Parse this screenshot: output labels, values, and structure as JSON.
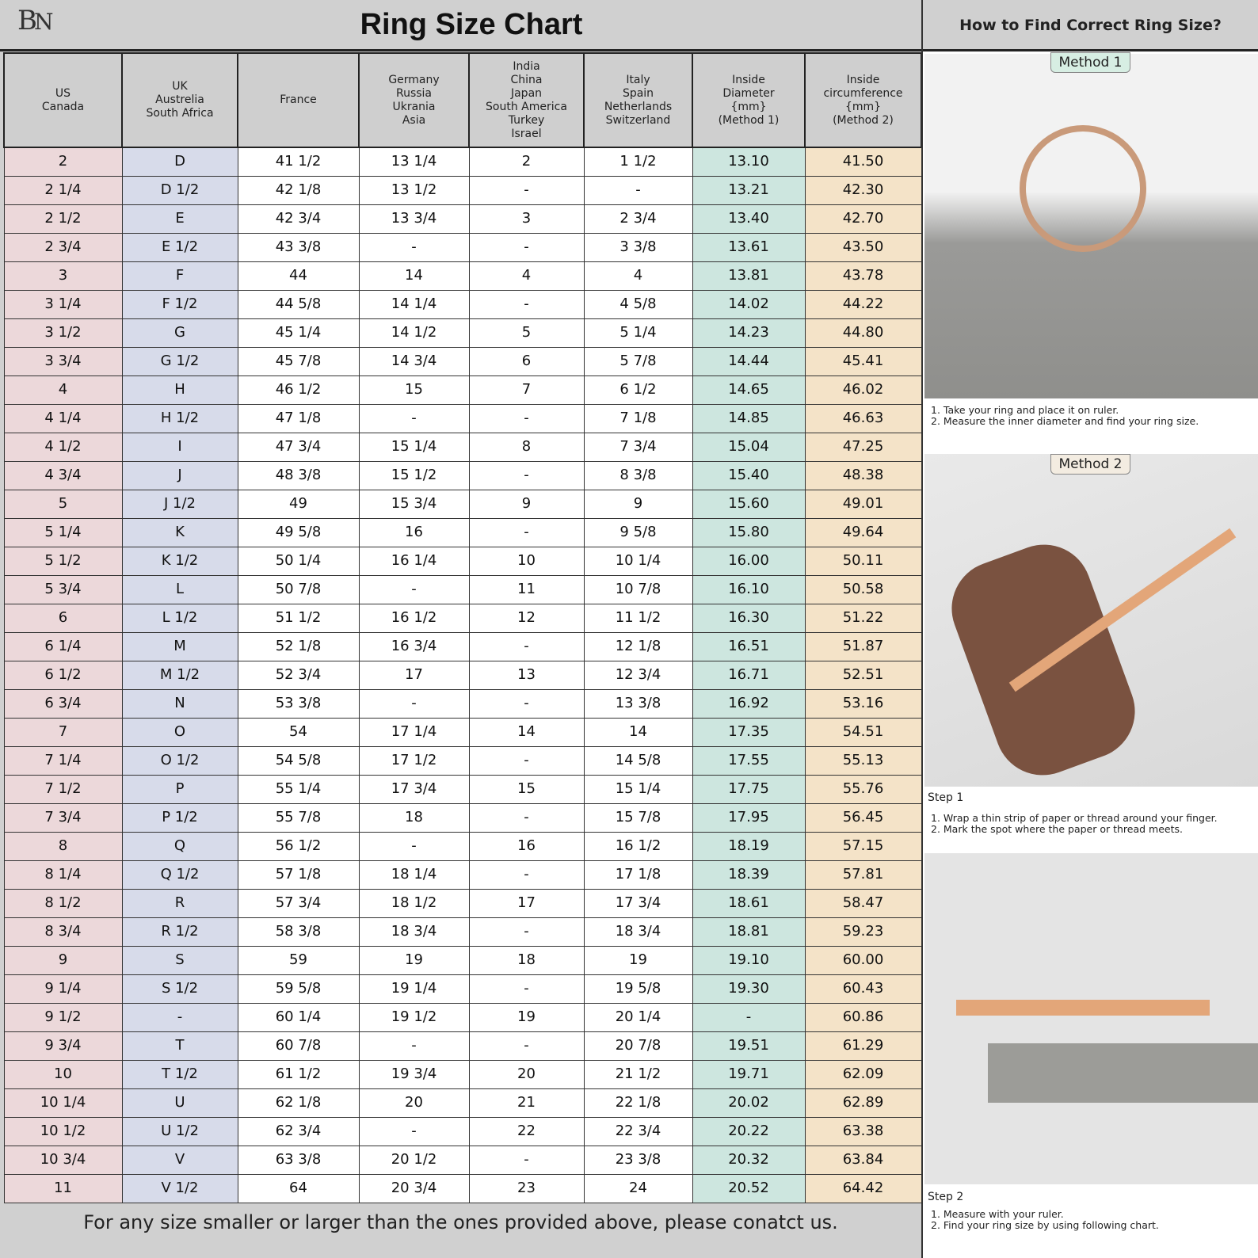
{
  "header": {
    "logo": "BN",
    "title": "Ring Size Chart"
  },
  "columns": [
    "US\nCanada",
    "UK\nAustrelia\nSouth Africa",
    "France",
    "Germany\nRussia\nUkrania\nAsia",
    "India\nChina\nJapan\nSouth America\nTurkey\nIsrael",
    "Italy\nSpain\nNetherlands\nSwitzerland",
    "Inside\nDiameter\n{mm}\n(Method 1)",
    "Inside\ncircumference\n{mm}\n(Method 2)"
  ],
  "column_colors": [
    "#ecd8da",
    "#d7dbea",
    "#ffffff",
    "#ffffff",
    "#ffffff",
    "#ffffff",
    "#cde6df",
    "#f4e3c8"
  ],
  "rows": [
    [
      "2",
      "D",
      "41 1/2",
      "13 1/4",
      "2",
      "1 1/2",
      "13.10",
      "41.50"
    ],
    [
      "2 1/4",
      "D 1/2",
      "42 1/8",
      "13 1/2",
      "-",
      "-",
      "13.21",
      "42.30"
    ],
    [
      "2 1/2",
      "E",
      "42 3/4",
      "13 3/4",
      "3",
      "2 3/4",
      "13.40",
      "42.70"
    ],
    [
      "2 3/4",
      "E 1/2",
      "43 3/8",
      "-",
      "-",
      "3 3/8",
      "13.61",
      "43.50"
    ],
    [
      "3",
      "F",
      "44",
      "14",
      "4",
      "4",
      "13.81",
      "43.78"
    ],
    [
      "3 1/4",
      "F 1/2",
      "44 5/8",
      "14 1/4",
      "-",
      "4 5/8",
      "14.02",
      "44.22"
    ],
    [
      "3 1/2",
      "G",
      "45 1/4",
      "14 1/2",
      "5",
      "5 1/4",
      "14.23",
      "44.80"
    ],
    [
      "3 3/4",
      "G 1/2",
      "45 7/8",
      "14 3/4",
      "6",
      "5 7/8",
      "14.44",
      "45.41"
    ],
    [
      "4",
      "H",
      "46 1/2",
      "15",
      "7",
      "6 1/2",
      "14.65",
      "46.02"
    ],
    [
      "4 1/4",
      "H 1/2",
      "47 1/8",
      "-",
      "-",
      "7 1/8",
      "14.85",
      "46.63"
    ],
    [
      "4 1/2",
      "I",
      "47 3/4",
      "15 1/4",
      "8",
      "7 3/4",
      "15.04",
      "47.25"
    ],
    [
      "4 3/4",
      "J",
      "48 3/8",
      "15 1/2",
      "-",
      "8 3/8",
      "15.40",
      "48.38"
    ],
    [
      "5",
      "J 1/2",
      "49",
      "15 3/4",
      "9",
      "9",
      "15.60",
      "49.01"
    ],
    [
      "5 1/4",
      "K",
      "49 5/8",
      "16",
      "-",
      "9 5/8",
      "15.80",
      "49.64"
    ],
    [
      "5 1/2",
      "K 1/2",
      "50 1/4",
      "16 1/4",
      "10",
      "10 1/4",
      "16.00",
      "50.11"
    ],
    [
      "5 3/4",
      "L",
      "50 7/8",
      "-",
      "11",
      "10 7/8",
      "16.10",
      "50.58"
    ],
    [
      "6",
      "L 1/2",
      "51 1/2",
      "16 1/2",
      "12",
      "11 1/2",
      "16.30",
      "51.22"
    ],
    [
      "6 1/4",
      "M",
      "52 1/8",
      "16 3/4",
      "-",
      "12 1/8",
      "16.51",
      "51.87"
    ],
    [
      "6 1/2",
      "M 1/2",
      "52 3/4",
      "17",
      "13",
      "12 3/4",
      "16.71",
      "52.51"
    ],
    [
      "6 3/4",
      "N",
      "53 3/8",
      "-",
      "-",
      "13 3/8",
      "16.92",
      "53.16"
    ],
    [
      "7",
      "O",
      "54",
      "17 1/4",
      "14",
      "14",
      "17.35",
      "54.51"
    ],
    [
      "7 1/4",
      "O 1/2",
      "54 5/8",
      "17 1/2",
      "-",
      "14 5/8",
      "17.55",
      "55.13"
    ],
    [
      "7 1/2",
      "P",
      "55 1/4",
      "17 3/4",
      "15",
      "15 1/4",
      "17.75",
      "55.76"
    ],
    [
      "7 3/4",
      "P 1/2",
      "55 7/8",
      "18",
      "-",
      "15 7/8",
      "17.95",
      "56.45"
    ],
    [
      "8",
      "Q",
      "56 1/2",
      "-",
      "16",
      "16 1/2",
      "18.19",
      "57.15"
    ],
    [
      "8 1/4",
      "Q 1/2",
      "57 1/8",
      "18 1/4",
      "-",
      "17 1/8",
      "18.39",
      "57.81"
    ],
    [
      "8 1/2",
      "R",
      "57 3/4",
      "18 1/2",
      "17",
      "17 3/4",
      "18.61",
      "58.47"
    ],
    [
      "8 3/4",
      "R 1/2",
      "58 3/8",
      "18 3/4",
      "-",
      "18 3/4",
      "18.81",
      "59.23"
    ],
    [
      "9",
      "S",
      "59",
      "19",
      "18",
      "19",
      "19.10",
      "60.00"
    ],
    [
      "9 1/4",
      "S 1/2",
      "59 5/8",
      "19 1/4",
      "-",
      "19 5/8",
      "19.30",
      "60.43"
    ],
    [
      "9 1/2",
      "-",
      "60 1/4",
      "19 1/2",
      "19",
      "20 1/4",
      "-",
      "60.86"
    ],
    [
      "9 3/4",
      "T",
      "60 7/8",
      "-",
      "-",
      "20 7/8",
      "19.51",
      "61.29"
    ],
    [
      "10",
      "T 1/2",
      "61 1/2",
      "19 3/4",
      "20",
      "21 1/2",
      "19.71",
      "62.09"
    ],
    [
      "10 1/4",
      "U",
      "62 1/8",
      "20",
      "21",
      "22 1/8",
      "20.02",
      "62.89"
    ],
    [
      "10 1/2",
      "U 1/2",
      "62 3/4",
      "-",
      "22",
      "22 3/4",
      "20.22",
      "63.38"
    ],
    [
      "10 3/4",
      "V",
      "63 3/8",
      "20 1/2",
      "-",
      "23 3/8",
      "20.32",
      "63.84"
    ],
    [
      "11",
      "V 1/2",
      "64",
      "20 3/4",
      "23",
      "24",
      "20.52",
      "64.42"
    ]
  ],
  "footer": "For any size smaller or larger than the ones provided above, please conatct us.",
  "watermark": "BN",
  "guide": {
    "title": "How to Find Correct Ring Size?",
    "method1": {
      "label": "Method 1",
      "instructions": "1. Take your ring and place it on ruler.\n2. Measure the inner diameter and find your ring size."
    },
    "method2": {
      "label": "Method 2",
      "step1_label": "Step 1",
      "step1_instructions": "1. Wrap a thin strip of paper or thread around your finger.\n2. Mark the spot where the paper or thread meets.",
      "step2_label": "Step 2",
      "step2_instructions": "1. Measure with your ruler.\n2. Find your ring size by using following chart."
    }
  }
}
